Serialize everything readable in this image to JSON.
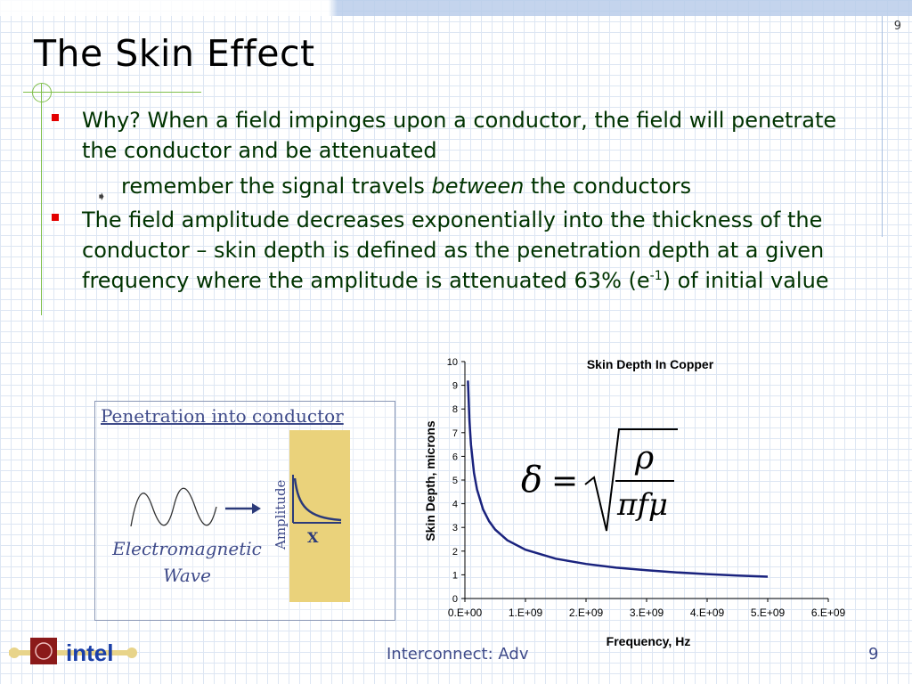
{
  "slide": {
    "number_top": "9",
    "title": "The Skin Effect",
    "footer_text": "Interconnect: Adv",
    "footer_number": "9"
  },
  "bullets": [
    {
      "text": "Why? When a field impinges upon a conductor, the field will penetrate the conductor and be attenuated"
    },
    {
      "text_before": "remember the signal travels ",
      "text_emph": "between",
      "text_after": " the conductors"
    },
    {
      "text_part1": "The field amplitude decreases exponentially into the thickness of the conductor – skin depth is defined as the penetration depth at a given frequency where the amplitude is attenuated 63% (e",
      "sup": "-1",
      "text_part2": ") of initial value"
    }
  ],
  "penetration_box": {
    "title": "Penetration into conductor",
    "wave_label_line1": "Electromagnetic",
    "wave_label_line2": "Wave",
    "axis_amplitude": "Amplitude",
    "axis_x": "X"
  },
  "formula": {
    "lhs": "δ",
    "eq": "=",
    "numerator": "ρ",
    "denominator": "πfμ"
  },
  "logo": {
    "text": "intel"
  },
  "colors": {
    "bullet_red": "#e30000",
    "text_green": "#003300",
    "accent_green": "#7fbf4a",
    "curve_blue": "#1a237e",
    "conductor_tan": "#ead27b"
  },
  "chart_data": {
    "type": "line",
    "title": "Skin Depth In Copper",
    "xlabel": "Frequency, Hz",
    "ylabel": "Skin Depth, microns",
    "xlim": [
      0,
      6000000000
    ],
    "ylim": [
      0,
      10
    ],
    "x_tick_labels": [
      "0.E+00",
      "1.E+09",
      "2.E+09",
      "3.E+09",
      "4.E+09",
      "5.E+09",
      "6.E+09"
    ],
    "y_tick_labels": [
      "0",
      "1",
      "2",
      "3",
      "4",
      "5",
      "6",
      "7",
      "8",
      "9",
      "10"
    ],
    "grid": false,
    "series": [
      {
        "x": [
          50000000,
          75000000,
          100000000,
          150000000,
          200000000,
          300000000,
          400000000,
          500000000,
          700000000,
          1000000000,
          1500000000,
          2000000000,
          2500000000,
          3000000000,
          3500000000,
          4000000000,
          4500000000,
          5000000000
        ],
        "values": [
          9.2,
          7.5,
          6.5,
          5.3,
          4.6,
          3.76,
          3.26,
          2.91,
          2.46,
          2.06,
          1.68,
          1.46,
          1.3,
          1.19,
          1.1,
          1.03,
          0.97,
          0.92
        ]
      }
    ]
  }
}
